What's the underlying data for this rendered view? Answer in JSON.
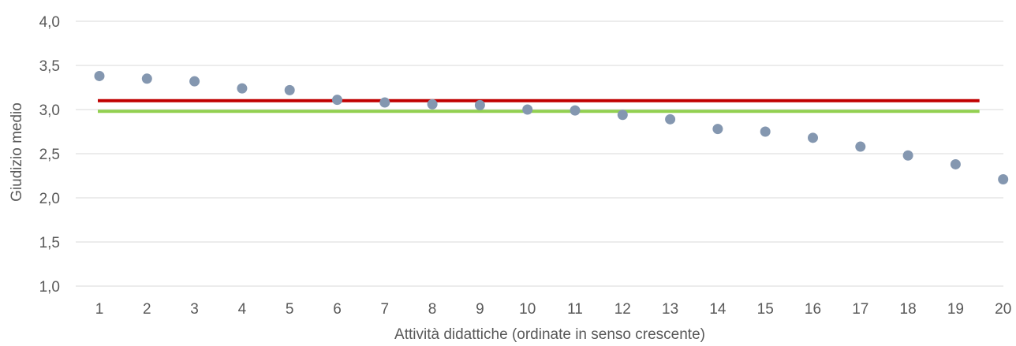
{
  "chart_data": {
    "type": "scatter",
    "xlabel": "Attività didattiche (ordinate in senso crescente)",
    "ylabel": "Giudizio medio",
    "ylim": [
      1.0,
      4.0
    ],
    "yticks": [
      "1,0",
      "1,5",
      "2,0",
      "2,5",
      "3,0",
      "3,5",
      "4,0"
    ],
    "categories": [
      "1",
      "2",
      "3",
      "4",
      "5",
      "6",
      "7",
      "8",
      "9",
      "10",
      "11",
      "12",
      "13",
      "14",
      "15",
      "16",
      "17",
      "18",
      "19",
      "20"
    ],
    "series": [
      {
        "type": "scatter",
        "color": "#8497B0",
        "values": [
          3.38,
          3.35,
          3.32,
          3.24,
          3.22,
          3.11,
          3.08,
          3.06,
          3.05,
          3.0,
          2.99,
          2.94,
          2.89,
          2.78,
          2.75,
          2.68,
          2.58,
          2.48,
          2.38,
          2.21
        ]
      },
      {
        "type": "hline",
        "color": "#C00000",
        "value": 3.1
      },
      {
        "type": "hline",
        "color": "#92D050",
        "value": 2.98
      }
    ],
    "grid": true,
    "gridlines_color": "#D9D9D9"
  }
}
